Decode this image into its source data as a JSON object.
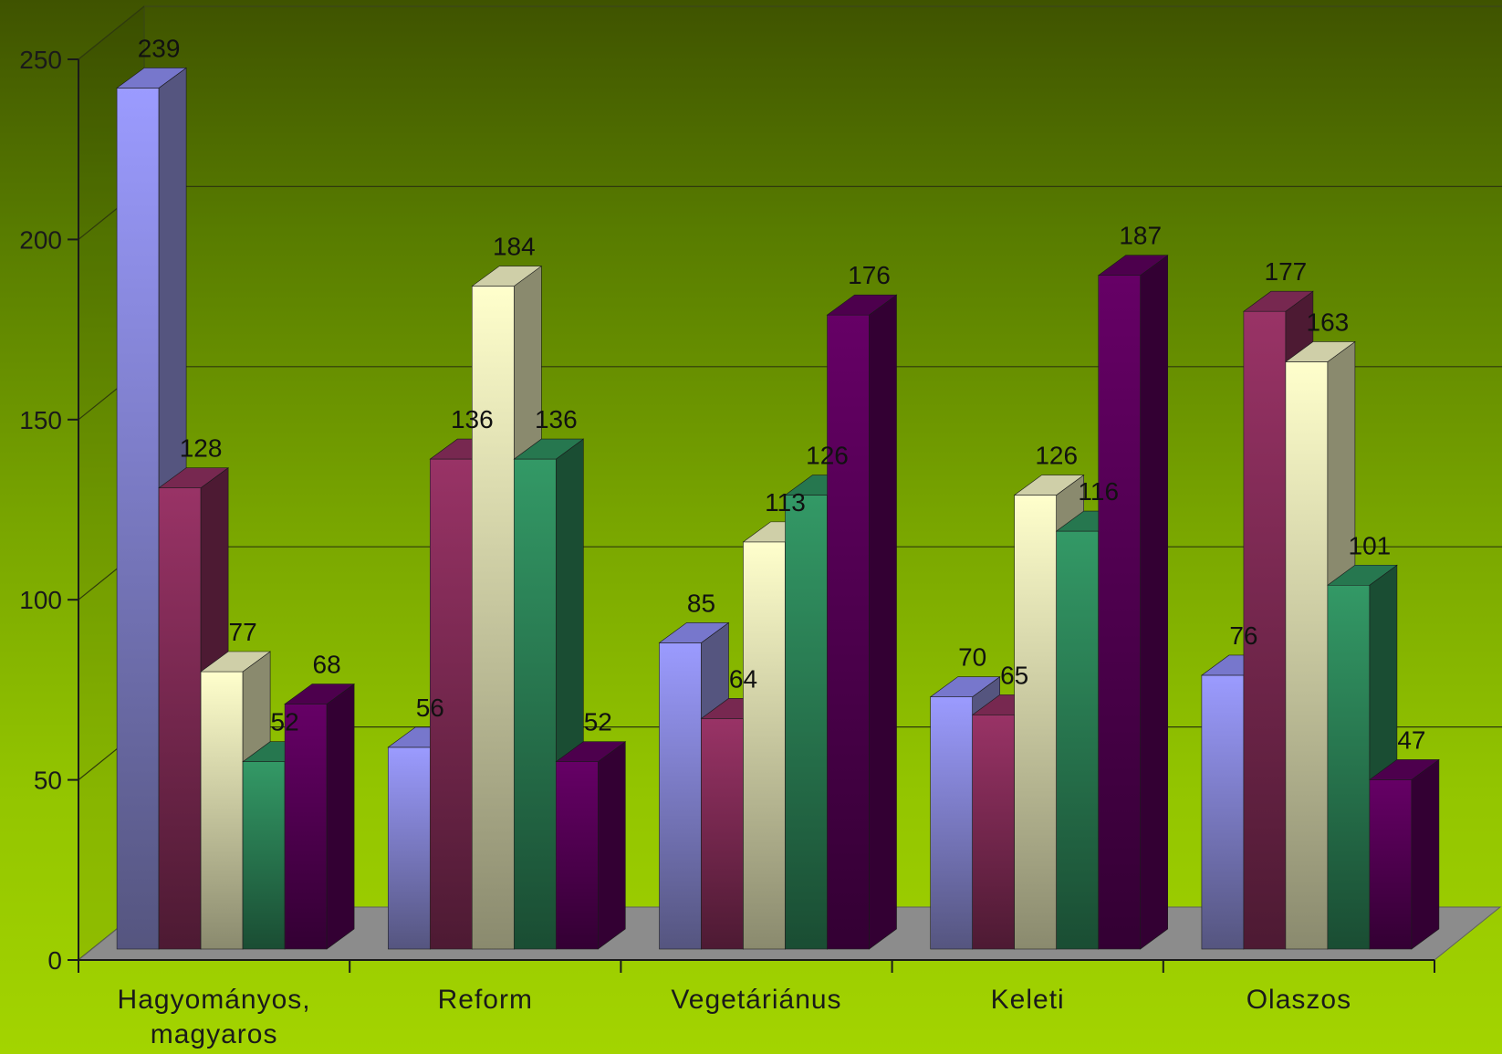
{
  "chart_data": {
    "type": "bar",
    "title": "",
    "xlabel": "",
    "ylabel": "",
    "ylim": [
      0,
      250
    ],
    "yticks": [
      0,
      50,
      100,
      150,
      200,
      250
    ],
    "grid": true,
    "three_d": true,
    "categories": [
      [
        "Hagyományos,",
        "magyaros"
      ],
      [
        "Reform"
      ],
      [
        "Vegetáriánus"
      ],
      [
        "Keleti"
      ],
      [
        "Olaszos"
      ]
    ],
    "series": [
      {
        "values": [
          239,
          56,
          85,
          70,
          76
        ],
        "colors": {
          "front": "#9b9bff",
          "side": "#55557f",
          "top": "#7777cc"
        }
      },
      {
        "values": [
          128,
          136,
          64,
          65,
          177
        ],
        "colors": {
          "front": "#993366",
          "side": "#4d1a33",
          "top": "#772850"
        }
      },
      {
        "values": [
          77,
          184,
          113,
          126,
          163
        ],
        "colors": {
          "front": "#ffffcc",
          "side": "#8a8a6e",
          "top": "#cfcfa8"
        }
      },
      {
        "values": [
          52,
          136,
          126,
          116,
          101
        ],
        "colors": {
          "front": "#339966",
          "side": "#1a4d33",
          "top": "#26774f"
        }
      },
      {
        "values": [
          68,
          52,
          176,
          187,
          47
        ],
        "colors": {
          "front": "#660066",
          "side": "#330033",
          "top": "#4d004d"
        }
      }
    ]
  }
}
